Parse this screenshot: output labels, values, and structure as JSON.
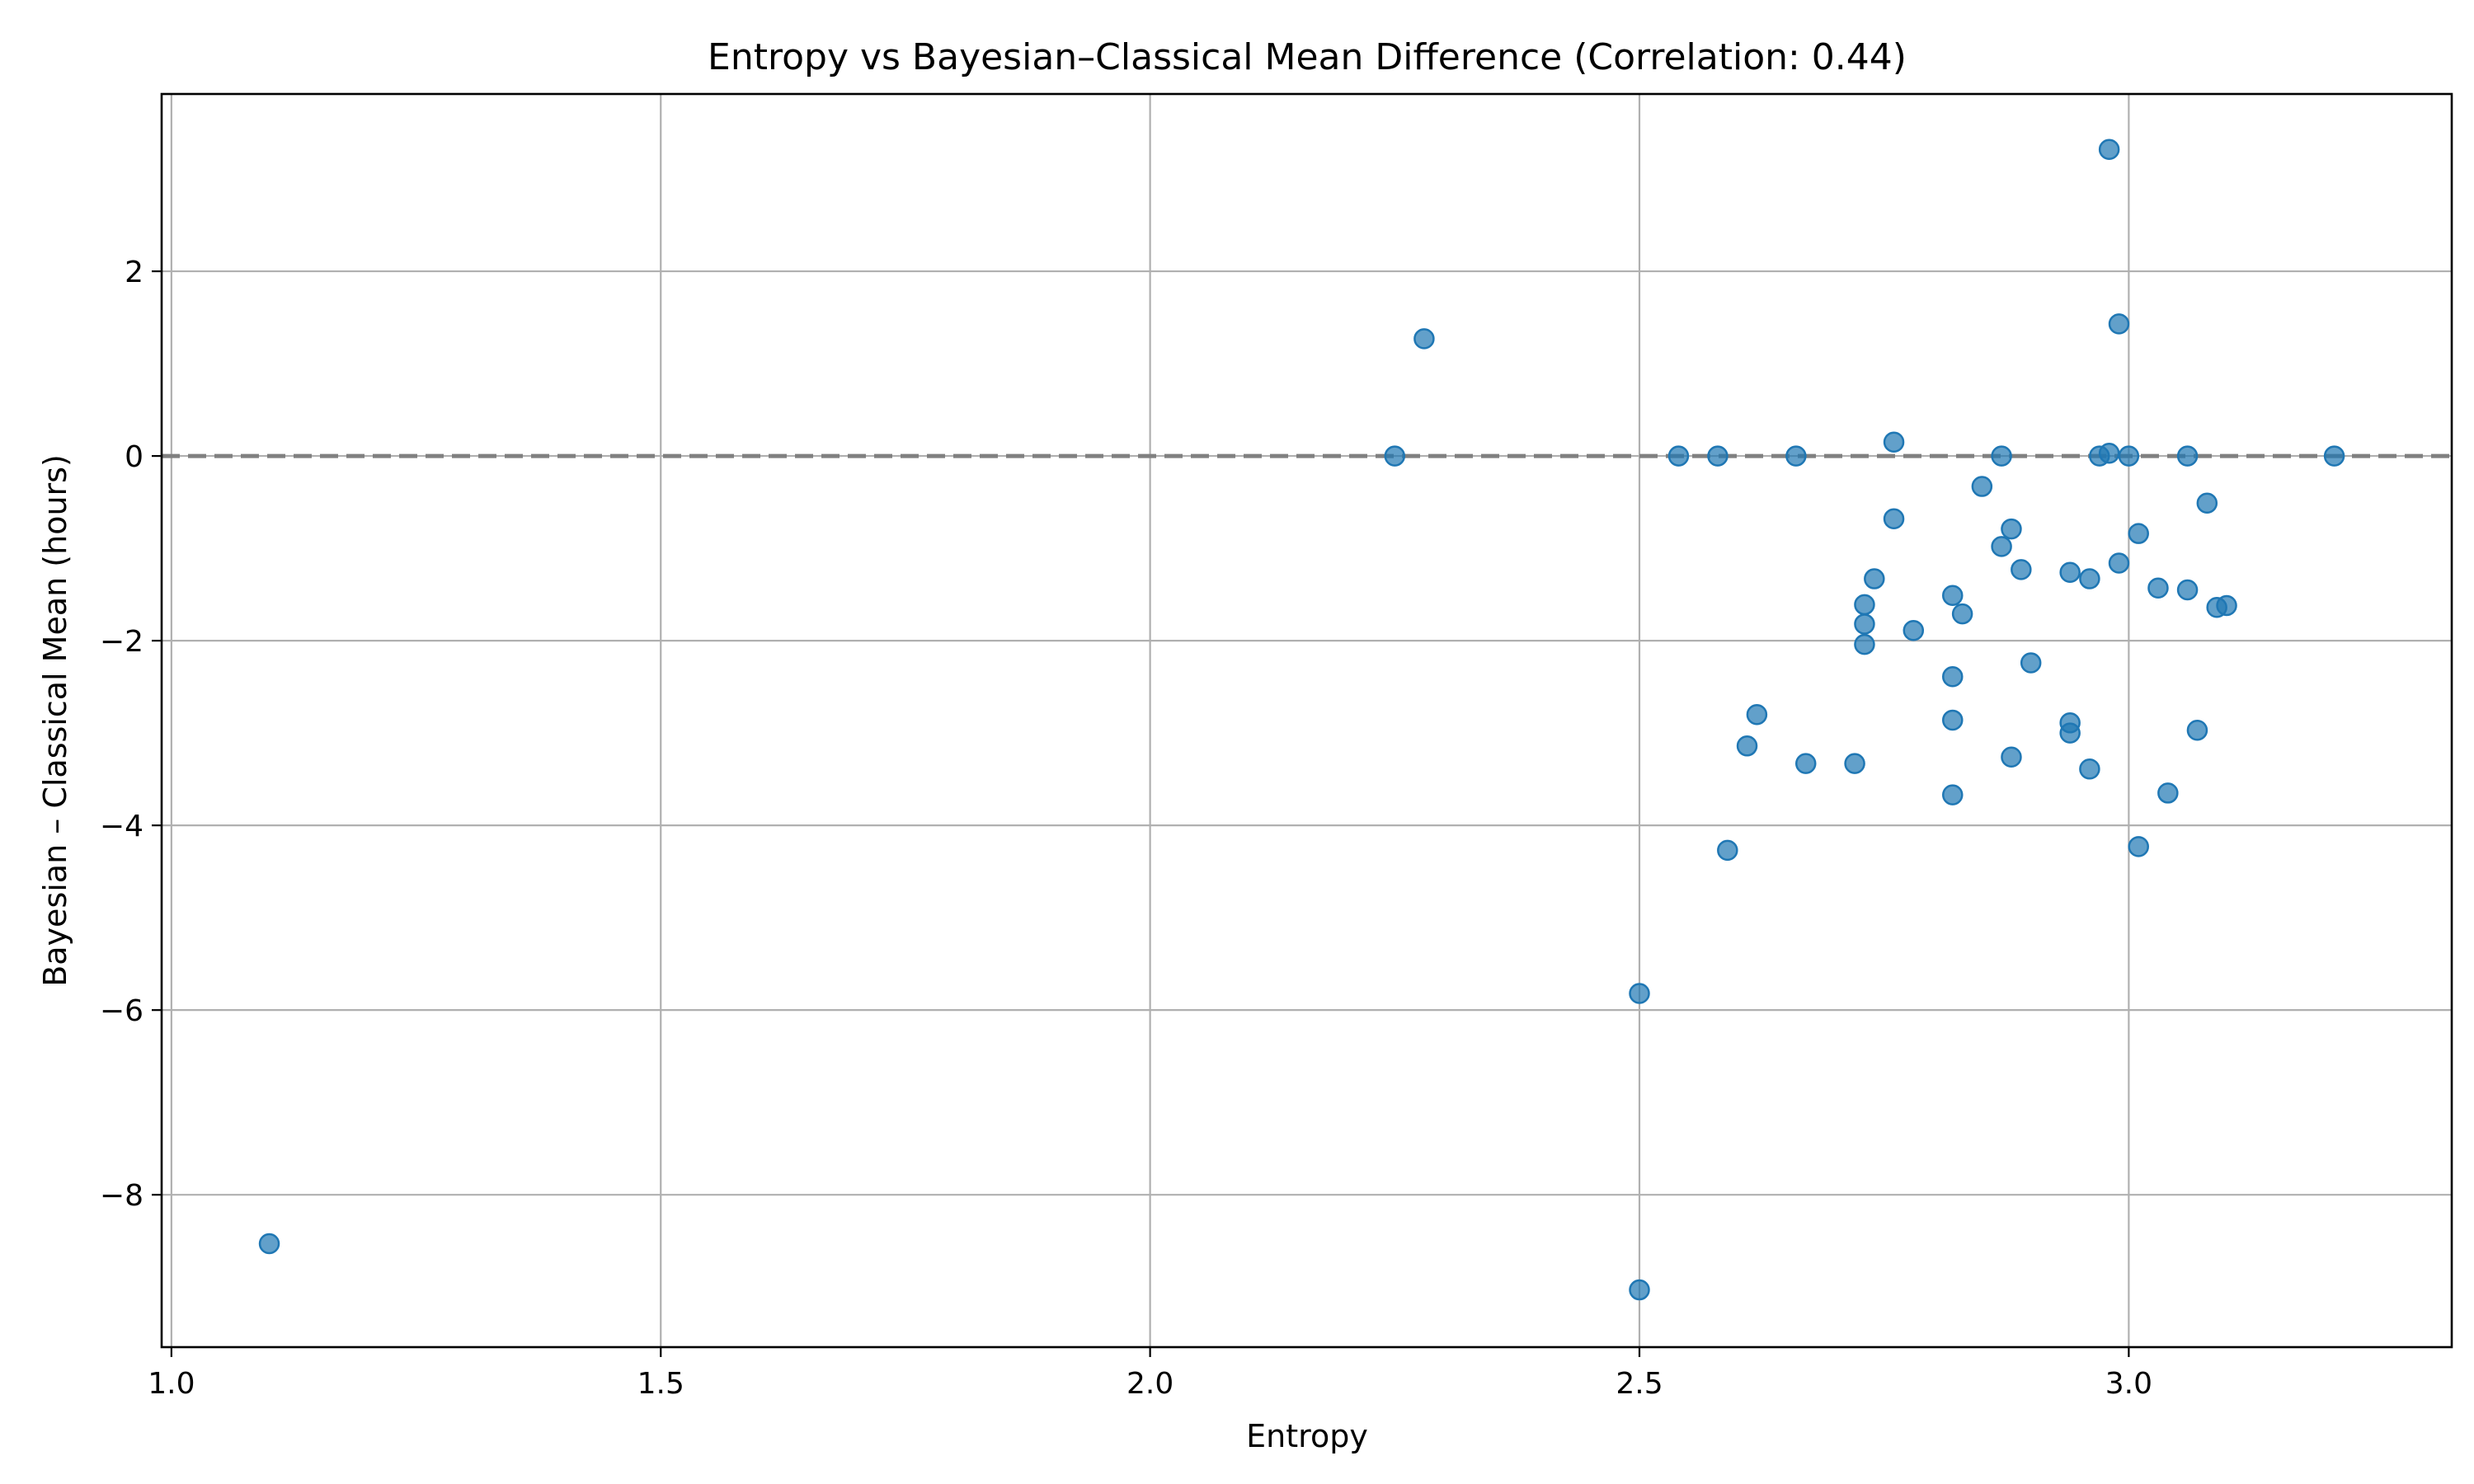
{
  "chart_data": {
    "type": "scatter",
    "title": "Entropy vs Bayesian–Classical Mean Difference (Correlation: 0.44)",
    "xlabel": "Entropy",
    "ylabel": "Bayesian – Classical Mean (hours)",
    "xlim": [
      0.99,
      3.33
    ],
    "ylim": [
      -9.65,
      3.92
    ],
    "xticks": [
      1.0,
      1.5,
      2.0,
      2.5,
      3.0
    ],
    "xtick_labels": [
      "1.0",
      "1.5",
      "2.0",
      "2.5",
      "3.0"
    ],
    "yticks": [
      -8,
      -6,
      -4,
      -2,
      0,
      2
    ],
    "ytick_labels": [
      "−8",
      "−6",
      "−4",
      "−2",
      "0",
      "2"
    ],
    "grid": true,
    "reference_line": {
      "y": 0,
      "style": "dashed",
      "color": "#808080"
    },
    "marker_color": "#1f77b4",
    "marker_alpha": 0.7,
    "points": [
      {
        "x": 1.1,
        "y": -8.53
      },
      {
        "x": 2.25,
        "y": 0.0
      },
      {
        "x": 2.28,
        "y": 1.27
      },
      {
        "x": 2.5,
        "y": -5.82
      },
      {
        "x": 2.5,
        "y": -9.03
      },
      {
        "x": 2.54,
        "y": 0.0
      },
      {
        "x": 2.58,
        "y": 0.0
      },
      {
        "x": 2.59,
        "y": -4.27
      },
      {
        "x": 2.61,
        "y": -3.14
      },
      {
        "x": 2.62,
        "y": -2.8
      },
      {
        "x": 2.66,
        "y": 0.0
      },
      {
        "x": 2.67,
        "y": -3.33
      },
      {
        "x": 2.72,
        "y": -3.33
      },
      {
        "x": 2.73,
        "y": -1.61
      },
      {
        "x": 2.73,
        "y": -1.82
      },
      {
        "x": 2.73,
        "y": -2.04
      },
      {
        "x": 2.74,
        "y": -1.33
      },
      {
        "x": 2.76,
        "y": 0.15
      },
      {
        "x": 2.76,
        "y": -0.68
      },
      {
        "x": 2.78,
        "y": -1.89
      },
      {
        "x": 2.82,
        "y": -2.39
      },
      {
        "x": 2.82,
        "y": -2.86
      },
      {
        "x": 2.82,
        "y": -3.67
      },
      {
        "x": 2.82,
        "y": -1.51
      },
      {
        "x": 2.83,
        "y": -1.71
      },
      {
        "x": 2.85,
        "y": -0.33
      },
      {
        "x": 2.87,
        "y": -0.98
      },
      {
        "x": 2.87,
        "y": 0.0
      },
      {
        "x": 2.88,
        "y": -0.79
      },
      {
        "x": 2.88,
        "y": -3.26
      },
      {
        "x": 2.89,
        "y": -1.23
      },
      {
        "x": 2.9,
        "y": -2.24
      },
      {
        "x": 2.94,
        "y": -1.26
      },
      {
        "x": 2.94,
        "y": -2.89
      },
      {
        "x": 2.94,
        "y": -3.0
      },
      {
        "x": 2.96,
        "y": -1.33
      },
      {
        "x": 2.96,
        "y": -3.39
      },
      {
        "x": 2.97,
        "y": 0.0
      },
      {
        "x": 2.98,
        "y": 0.03
      },
      {
        "x": 2.98,
        "y": 3.32
      },
      {
        "x": 2.99,
        "y": -1.16
      },
      {
        "x": 2.99,
        "y": 1.43
      },
      {
        "x": 3.0,
        "y": 0.0
      },
      {
        "x": 3.01,
        "y": -0.84
      },
      {
        "x": 3.01,
        "y": -4.23
      },
      {
        "x": 3.03,
        "y": -1.43
      },
      {
        "x": 3.04,
        "y": -3.65
      },
      {
        "x": 3.06,
        "y": 0.0
      },
      {
        "x": 3.06,
        "y": -1.45
      },
      {
        "x": 3.07,
        "y": -2.97
      },
      {
        "x": 3.08,
        "y": -0.51
      },
      {
        "x": 3.09,
        "y": -1.64
      },
      {
        "x": 3.1,
        "y": -1.62
      },
      {
        "x": 3.21,
        "y": 0.0
      }
    ]
  }
}
